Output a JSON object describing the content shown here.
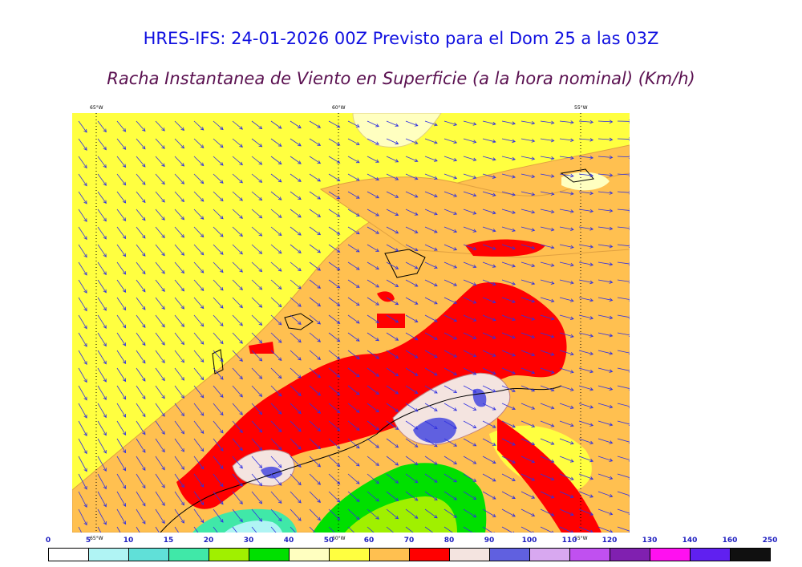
{
  "header": {
    "title": "HRES-IFS: 24-01-2026 00Z Previsto para el Dom 25 a las 03Z",
    "subtitle": "Racha Instantanea de Viento en Superficie (a la hora nominal) (Km/h)"
  },
  "map": {
    "top_lon_labels": [
      "65°W",
      "60°W",
      "55°W"
    ],
    "bottom_lon_labels": [
      "65°W",
      "60°W",
      "55°W"
    ]
  },
  "legend": {
    "values": [
      "0",
      "5",
      "10",
      "15",
      "20",
      "30",
      "40",
      "50",
      "60",
      "70",
      "80",
      "90",
      "100",
      "110",
      "120",
      "130",
      "140",
      "160",
      "250"
    ],
    "colors": [
      "#ffffff",
      "#b0f4f4",
      "#60e0d8",
      "#40e8a8",
      "#a0f000",
      "#00e000",
      "#ffffc0",
      "#ffff40",
      "#ffc050",
      "#ff0000",
      "#f4e4e0",
      "#6060e0",
      "#d8a8f0",
      "#c050f0",
      "#8020b0",
      "#ff10f0",
      "#6020f0",
      "#101010"
    ]
  }
}
